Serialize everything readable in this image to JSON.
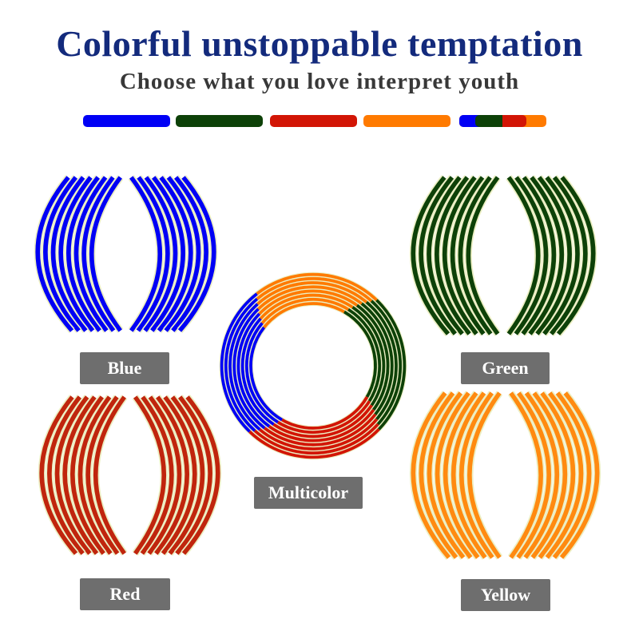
{
  "header": {
    "title": "Colorful unstoppable temptation",
    "subtitle": "Choose what you love interpret youth"
  },
  "colors": {
    "blue": "#0000f5",
    "green": "#0d4108",
    "red": "#d21505",
    "orange": "#ff7a00",
    "outline": "#ecefc4",
    "title": "#132a7c",
    "label_bg": "#6e6e6e"
  },
  "swatches": [
    "blue",
    "green",
    "red",
    "orange",
    "multicolor"
  ],
  "products": [
    {
      "id": "blue",
      "label": "Blue",
      "color": "#0000f5"
    },
    {
      "id": "green",
      "label": "Green",
      "color": "#0d4108"
    },
    {
      "id": "red",
      "label": "Red",
      "color": "#c0250d"
    },
    {
      "id": "yellow",
      "label": "Yellow",
      "color": "#ff8a10"
    },
    {
      "id": "multicolor",
      "label": "Multicolor"
    }
  ]
}
